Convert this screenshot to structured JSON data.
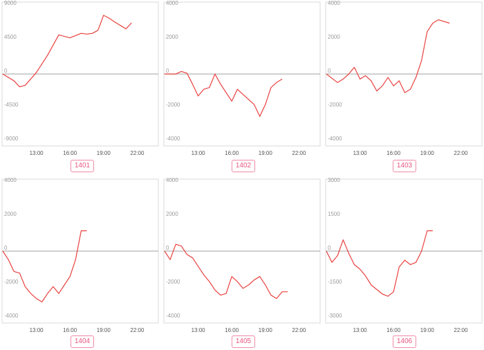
{
  "chart_data": [
    {
      "type": "line",
      "label": "1401",
      "yticks": [
        9000,
        4500,
        0,
        -4500,
        -9000
      ],
      "ylim": [
        -9000,
        9000
      ],
      "xticks": [
        "13:00",
        "16:00",
        "19:00",
        "22:00"
      ],
      "x": [
        10,
        11,
        11.5,
        12,
        13,
        14,
        15,
        16,
        17,
        17.5,
        18,
        18.5,
        19,
        19.5,
        20,
        21,
        21.5
      ],
      "y": [
        0,
        -900,
        -1700,
        -1500,
        200,
        2500,
        5200,
        4800,
        5400,
        5300,
        5400,
        5800,
        7800,
        7400,
        6900,
        6000,
        6800
      ],
      "color": "#e8413e"
    },
    {
      "type": "line",
      "label": "1402",
      "yticks": [
        4000,
        2000,
        0,
        -2000,
        -4000
      ],
      "ylim": [
        -4000,
        4000
      ],
      "xticks": [
        "13:00",
        "16:00",
        "19:00",
        "22:00"
      ],
      "x": [
        10,
        11,
        11.5,
        12,
        12.5,
        13,
        13.5,
        14,
        14.5,
        15,
        15.5,
        16,
        16.5,
        17,
        17.5,
        18,
        18.5,
        19,
        19.5,
        20,
        20.5
      ],
      "y": [
        0,
        0,
        150,
        50,
        -600,
        -1300,
        -900,
        -800,
        0,
        -600,
        -1100,
        -1600,
        -900,
        -1200,
        -1500,
        -1800,
        -2500,
        -1800,
        -800,
        -500,
        -300
      ],
      "color": "#e8413e"
    },
    {
      "type": "line",
      "label": "1403",
      "yticks": [
        4000,
        2000,
        0,
        -2000,
        -4000
      ],
      "ylim": [
        -4000,
        4000
      ],
      "xticks": [
        "13:00",
        "16:00",
        "19:00",
        "22:00"
      ],
      "x": [
        10,
        11,
        11.5,
        12,
        12.5,
        13,
        13.5,
        14,
        14.5,
        15,
        15.5,
        16,
        16.5,
        17,
        17.5,
        18,
        18.5,
        19,
        19.5,
        20,
        21
      ],
      "y": [
        0,
        -500,
        -300,
        0,
        400,
        -300,
        -100,
        -400,
        -1000,
        -700,
        -200,
        -700,
        -400,
        -1100,
        -900,
        -200,
        800,
        2500,
        3000,
        3200,
        3000
      ],
      "color": "#e8413e"
    },
    {
      "type": "line",
      "label": "1404",
      "yticks": [
        4000,
        2000,
        0,
        -2000,
        -4000
      ],
      "ylim": [
        -4000,
        4000
      ],
      "xticks": [
        "13:00",
        "16:00",
        "19:00",
        "22:00"
      ],
      "x": [
        10,
        10.5,
        11,
        11.5,
        12,
        12.5,
        13,
        13.5,
        14,
        14.5,
        15,
        15.5,
        16,
        16.5,
        17,
        17.5
      ],
      "y": [
        0,
        -500,
        -1200,
        -1300,
        -2100,
        -2500,
        -2800,
        -3000,
        -2500,
        -2100,
        -2500,
        -2000,
        -1500,
        -500,
        1200,
        1200
      ],
      "color": "#e8413e"
    },
    {
      "type": "line",
      "label": "1405",
      "yticks": [
        4000,
        2000,
        0,
        -2000,
        -4000
      ],
      "ylim": [
        -4000,
        4000
      ],
      "xticks": [
        "13:00",
        "16:00",
        "19:00",
        "22:00"
      ],
      "x": [
        10,
        10.5,
        11,
        11.5,
        12,
        12.5,
        13,
        13.5,
        14,
        14.5,
        15,
        15.5,
        16,
        16.5,
        17,
        17.5,
        18,
        18.5,
        19,
        19.5,
        20,
        20.5,
        21
      ],
      "y": [
        0,
        -500,
        400,
        300,
        -200,
        -400,
        -900,
        -1400,
        -1800,
        -2300,
        -2600,
        -2500,
        -1500,
        -1800,
        -2200,
        -2000,
        -1700,
        -1500,
        -2000,
        -2600,
        -2800,
        -2400,
        -2400
      ],
      "color": "#e8413e"
    },
    {
      "type": "line",
      "label": "1406",
      "yticks": [
        3000,
        1500,
        0,
        -1500,
        -3000
      ],
      "ylim": [
        -3000,
        3000
      ],
      "xticks": [
        "13:00",
        "16:00",
        "19:00",
        "22:00"
      ],
      "x": [
        10,
        10.5,
        11,
        11.5,
        12,
        12.5,
        13,
        13.5,
        14,
        14.5,
        15,
        15.5,
        16,
        16.5,
        17,
        17.5,
        18,
        18.5,
        19,
        19.5
      ],
      "y": [
        0,
        -500,
        -200,
        500,
        -100,
        -600,
        -800,
        -1100,
        -1500,
        -1700,
        -1900,
        -2000,
        -1800,
        -700,
        -400,
        -600,
        -500,
        0,
        900,
        900
      ],
      "color": "#e8413e"
    }
  ]
}
